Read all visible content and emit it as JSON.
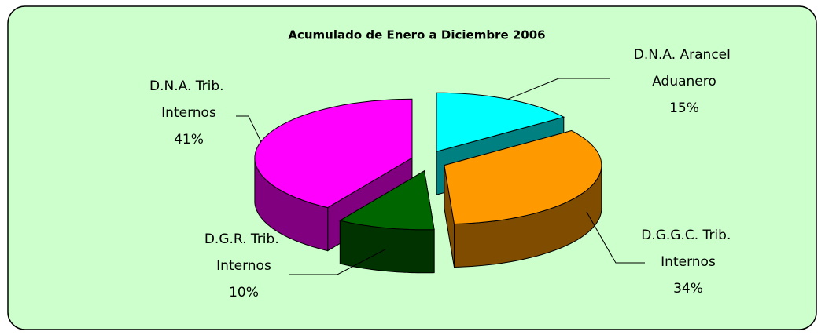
{
  "chart_data": {
    "type": "pie3d",
    "title": "Acumulado de Enero a Diciembre 2006",
    "categories": [
      "D.N.A. Arancel Aduanero",
      "D.G.G.C. Trib. Internos",
      "D.G.R. Trib. Internos",
      "D.N.A. Trib. Internos"
    ],
    "values": [
      15,
      34,
      10,
      41
    ],
    "value_labels": [
      "15%",
      "34%",
      "10%",
      "41%"
    ],
    "colors": [
      "#00ffff",
      "#ff9900",
      "#006600",
      "#ff00ff"
    ],
    "side_colors": [
      "#008080",
      "#804d00",
      "#003300",
      "#800080"
    ]
  }
}
